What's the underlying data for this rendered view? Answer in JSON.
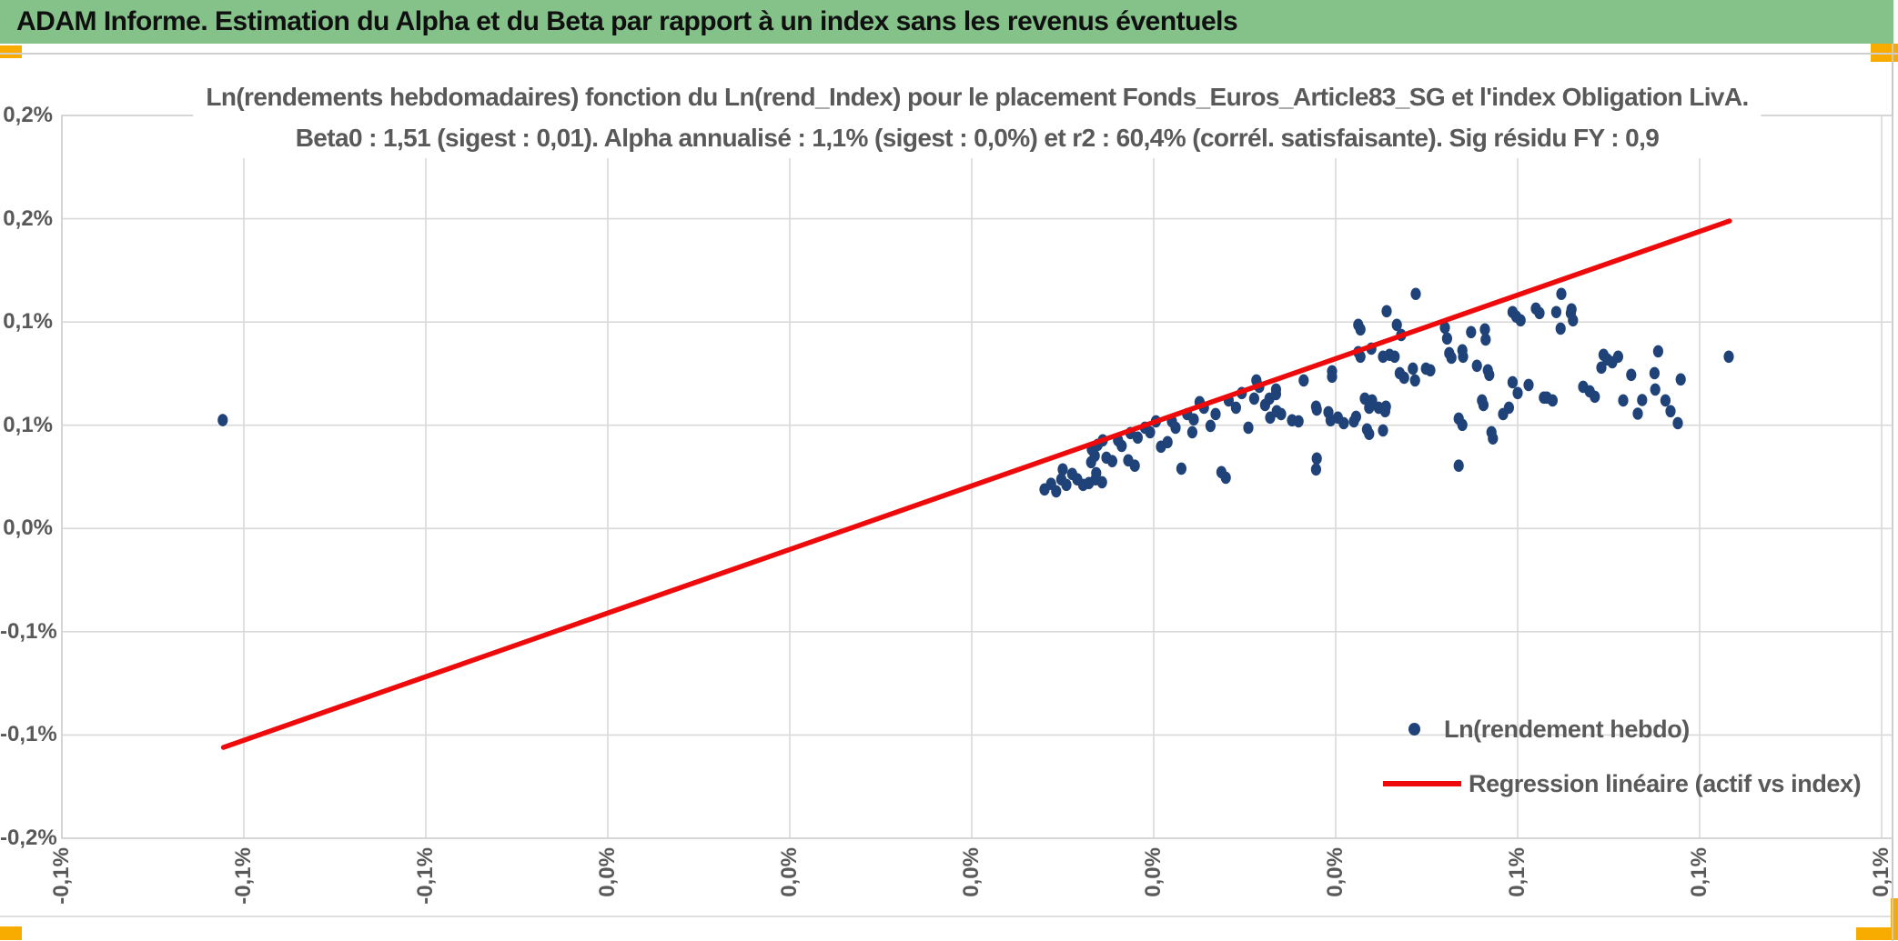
{
  "window": {
    "title": "ADAM Informe. Estimation du Alpha et du Beta par rapport à un index sans les revenus éventuels"
  },
  "chart": {
    "title_line1": "Ln(rendements hebdomadaires) fonction du Ln(rend_Index) pour le placement Fonds_Euros_Article83_SG et l'index Obligation LivA.",
    "title_line2": "Beta0 : 1,51 (sigest : 0,01). Alpha annualisé : 1,1% (sigest : 0,0%) et r2 : 60,4% (corrél. satisfaisante). Sig résidu FY : 0,9",
    "legend": {
      "scatter_label": "Ln(rendement hebdo)",
      "line_label": "Regression linéaire (actif vs index)"
    }
  },
  "colors": {
    "header_green": "#84C28A",
    "accent_amber": "#F8AC00",
    "scatter_navy": "#1F4379",
    "regression_red": "#EE0A0A",
    "text_gray": "#595959",
    "gridline_gray": "#D9D9D9",
    "plot_border_gray": "#D0D0D0"
  },
  "chart_data": {
    "type": "scatter",
    "title": "Ln(rendements hebdomadaires) fonction du Ln(rend_Index) pour le placement Fonds_Euros_Article83_SG et l'index Obligation LivA.",
    "subtitle": "Beta0 : 1,51 (sigest : 0,01). Alpha annualisé : 1,1% (sigest : 0,0%) et r2 : 60,4% (corrél. satisfaisante). Sig résidu FY : 0,9",
    "stats": {
      "beta0": "1,51",
      "beta0_sigest": "0,01",
      "alpha_annualise": "1,1%",
      "alpha_sigest": "0,0%",
      "r2": "60,4%",
      "correlation_qualite": "satisfaisante",
      "sig_residu_fy": "0,9"
    },
    "grid": true,
    "legend_position": "bottom-right-inside",
    "x_axis": {
      "unit": "%",
      "min": -0.125,
      "max": 0.1265,
      "tick_step": 0.025,
      "tick_values": [
        -0.125,
        -0.1,
        -0.075,
        -0.05,
        -0.025,
        0,
        0.025,
        0.05,
        0.075,
        0.1,
        0.125
      ],
      "tick_labels": [
        "-0,1%",
        "-0,1%",
        "-0,1%",
        "0,0%",
        "0,0%",
        "0,0%",
        "0,0%",
        "0,0%",
        "0,1%",
        "0,1%",
        "0,1%"
      ]
    },
    "y_axis": {
      "unit": "%",
      "min": -0.15,
      "max": 0.2,
      "tick_step": 0.05,
      "tick_values": [
        0.2,
        0.15,
        0.1,
        0.05,
        0,
        -0.05,
        -0.1,
        -0.15
      ],
      "tick_labels": [
        "0,2%",
        "0,2%",
        "0,1%",
        "0,1%",
        "0,0%",
        "-0,1%",
        "-0,1%",
        "-0,2%"
      ]
    },
    "series": [
      {
        "name": "Ln(rendement hebdo)",
        "type": "scatter",
        "color": "#1F4379",
        "points": [
          [
            -0.1029,
            0.0525
          ],
          [
            0.01,
            0.0189
          ],
          [
            0.0109,
            0.0216
          ],
          [
            0.0116,
            0.018
          ],
          [
            0.0123,
            0.0238
          ],
          [
            0.013,
            0.0211
          ],
          [
            0.0138,
            0.0264
          ],
          [
            0.0145,
            0.0238
          ],
          [
            0.0125,
            0.0286
          ],
          [
            0.0153,
            0.0211
          ],
          [
            0.0161,
            0.022
          ],
          [
            0.017,
            0.0238
          ],
          [
            0.0179,
            0.0224
          ],
          [
            0.0171,
            0.0268
          ],
          [
            0.0164,
            0.0321
          ],
          [
            0.0169,
            0.0352
          ],
          [
            0.0165,
            0.0383
          ],
          [
            0.0173,
            0.0405
          ],
          [
            0.018,
            0.0427
          ],
          [
            0.0185,
            0.0343
          ],
          [
            0.0193,
            0.0326
          ],
          [
            0.0201,
            0.0427
          ],
          [
            0.0206,
            0.04
          ],
          [
            0.0215,
            0.033
          ],
          [
            0.0224,
            0.0304
          ],
          [
            0.0218,
            0.0462
          ],
          [
            0.0228,
            0.044
          ],
          [
            0.0238,
            0.0488
          ],
          [
            0.0245,
            0.0466
          ],
          [
            0.0253,
            0.0519
          ],
          [
            0.026,
            0.0396
          ],
          [
            0.0269,
            0.0418
          ],
          [
            0.0275,
            0.0519
          ],
          [
            0.028,
            0.0488
          ],
          [
            0.0288,
            0.029
          ],
          [
            0.0296,
            0.0554
          ],
          [
            0.0305,
            0.0528
          ],
          [
            0.0303,
            0.0466
          ],
          [
            0.0313,
            0.0612
          ],
          [
            0.0319,
            0.0585
          ],
          [
            0.0328,
            0.0497
          ],
          [
            0.0335,
            0.0554
          ],
          [
            0.0343,
            0.0273
          ],
          [
            0.0349,
            0.0246
          ],
          [
            0.0353,
            0.062
          ],
          [
            0.0363,
            0.0585
          ],
          [
            0.0371,
            0.0656
          ],
          [
            0.038,
            0.0488
          ],
          [
            0.0388,
            0.0629
          ],
          [
            0.0395,
            0.0686
          ],
          [
            0.0391,
            0.0717
          ],
          [
            0.0403,
            0.0598
          ],
          [
            0.0409,
            0.0629
          ],
          [
            0.0418,
            0.0673
          ],
          [
            0.0418,
            0.0651
          ],
          [
            0.0419,
            0.0568
          ],
          [
            0.0425,
            0.0554
          ],
          [
            0.041,
            0.0537
          ],
          [
            0.044,
            0.0524
          ],
          [
            0.0449,
            0.0519
          ],
          [
            0.0456,
            0.0717
          ],
          [
            0.0473,
            0.059
          ],
          [
            0.0474,
            0.0576
          ],
          [
            0.0474,
            0.0339
          ],
          [
            0.0473,
            0.0286
          ],
          [
            0.049,
            0.0563
          ],
          [
            0.0495,
            0.0761
          ],
          [
            0.0495,
            0.0735
          ],
          [
            0.0503,
            0.0537
          ],
          [
            0.0493,
            0.0524
          ],
          [
            0.0511,
            0.051
          ],
          [
            0.0528,
            0.0541
          ],
          [
            0.0525,
            0.0519
          ],
          [
            0.0531,
            0.0986
          ],
          [
            0.0534,
            0.0964
          ],
          [
            0.0531,
            0.0854
          ],
          [
            0.0534,
            0.0832
          ],
          [
            0.054,
            0.0629
          ],
          [
            0.0543,
            0.048
          ],
          [
            0.0546,
            0.0458
          ],
          [
            0.0546,
            0.0585
          ],
          [
            0.0549,
            0.0871
          ],
          [
            0.055,
            0.062
          ],
          [
            0.0559,
            0.0585
          ],
          [
            0.0565,
            0.0832
          ],
          [
            0.0565,
            0.0475
          ],
          [
            0.0569,
            0.059
          ],
          [
            0.0568,
            0.0568
          ],
          [
            0.057,
            0.1052
          ],
          [
            0.0574,
            0.0841
          ],
          [
            0.0581,
            0.0832
          ],
          [
            0.0584,
            0.0986
          ],
          [
            0.0588,
            0.0752
          ],
          [
            0.059,
            0.0937
          ],
          [
            0.0594,
            0.073
          ],
          [
            0.0606,
            0.0774
          ],
          [
            0.0609,
            0.0717
          ],
          [
            0.061,
            0.1136
          ],
          [
            0.0624,
            0.0774
          ],
          [
            0.063,
            0.0766
          ],
          [
            0.065,
            0.0973
          ],
          [
            0.0653,
            0.092
          ],
          [
            0.0656,
            0.0849
          ],
          [
            0.0659,
            0.0827
          ],
          [
            0.0669,
            0.0532
          ],
          [
            0.0674,
            0.0502
          ],
          [
            0.0669,
            0.0304
          ],
          [
            0.0674,
            0.0863
          ],
          [
            0.0675,
            0.0832
          ],
          [
            0.0686,
            0.0951
          ],
          [
            0.0694,
            0.0788
          ],
          [
            0.0701,
            0.062
          ],
          [
            0.0703,
            0.0598
          ],
          [
            0.0705,
            0.0964
          ],
          [
            0.0706,
            0.0915
          ],
          [
            0.0709,
            0.0766
          ],
          [
            0.0711,
            0.0744
          ],
          [
            0.0714,
            0.0466
          ],
          [
            0.0716,
            0.0436
          ],
          [
            0.073,
            0.0554
          ],
          [
            0.0738,
            0.0585
          ],
          [
            0.0743,
            0.0708
          ],
          [
            0.075,
            0.0656
          ],
          [
            0.0765,
            0.0695
          ],
          [
            0.0743,
            0.1048
          ],
          [
            0.0748,
            0.1026
          ],
          [
            0.0754,
            0.1008
          ],
          [
            0.0775,
            0.1065
          ],
          [
            0.078,
            0.1043
          ],
          [
            0.0803,
            0.1048
          ],
          [
            0.0809,
            0.0968
          ],
          [
            0.081,
            0.1136
          ],
          [
            0.0824,
            0.1061
          ],
          [
            0.0823,
            0.1043
          ],
          [
            0.0826,
            0.1008
          ],
          [
            0.0786,
            0.0634
          ],
          [
            0.079,
            0.0634
          ],
          [
            0.0798,
            0.062
          ],
          [
            0.084,
            0.0686
          ],
          [
            0.0849,
            0.0664
          ],
          [
            0.0856,
            0.0638
          ],
          [
            0.0865,
            0.0779
          ],
          [
            0.0868,
            0.0841
          ],
          [
            0.0873,
            0.0819
          ],
          [
            0.088,
            0.0805
          ],
          [
            0.0888,
            0.0832
          ],
          [
            0.0895,
            0.062
          ],
          [
            0.0906,
            0.0744
          ],
          [
            0.0915,
            0.0556
          ],
          [
            0.0921,
            0.0622
          ],
          [
            0.0938,
            0.0752
          ],
          [
            0.0939,
            0.0673
          ],
          [
            0.0943,
            0.0858
          ],
          [
            0.0953,
            0.062
          ],
          [
            0.096,
            0.0568
          ],
          [
            0.097,
            0.051
          ],
          [
            0.0974,
            0.0722
          ],
          [
            0.104,
            0.0832
          ]
        ]
      },
      {
        "name": "Regression linéaire (actif vs index)",
        "type": "line",
        "color": "#EE0A0A",
        "points": [
          [
            -0.1028,
            -0.106
          ],
          [
            0.1041,
            0.1489
          ]
        ]
      }
    ]
  }
}
